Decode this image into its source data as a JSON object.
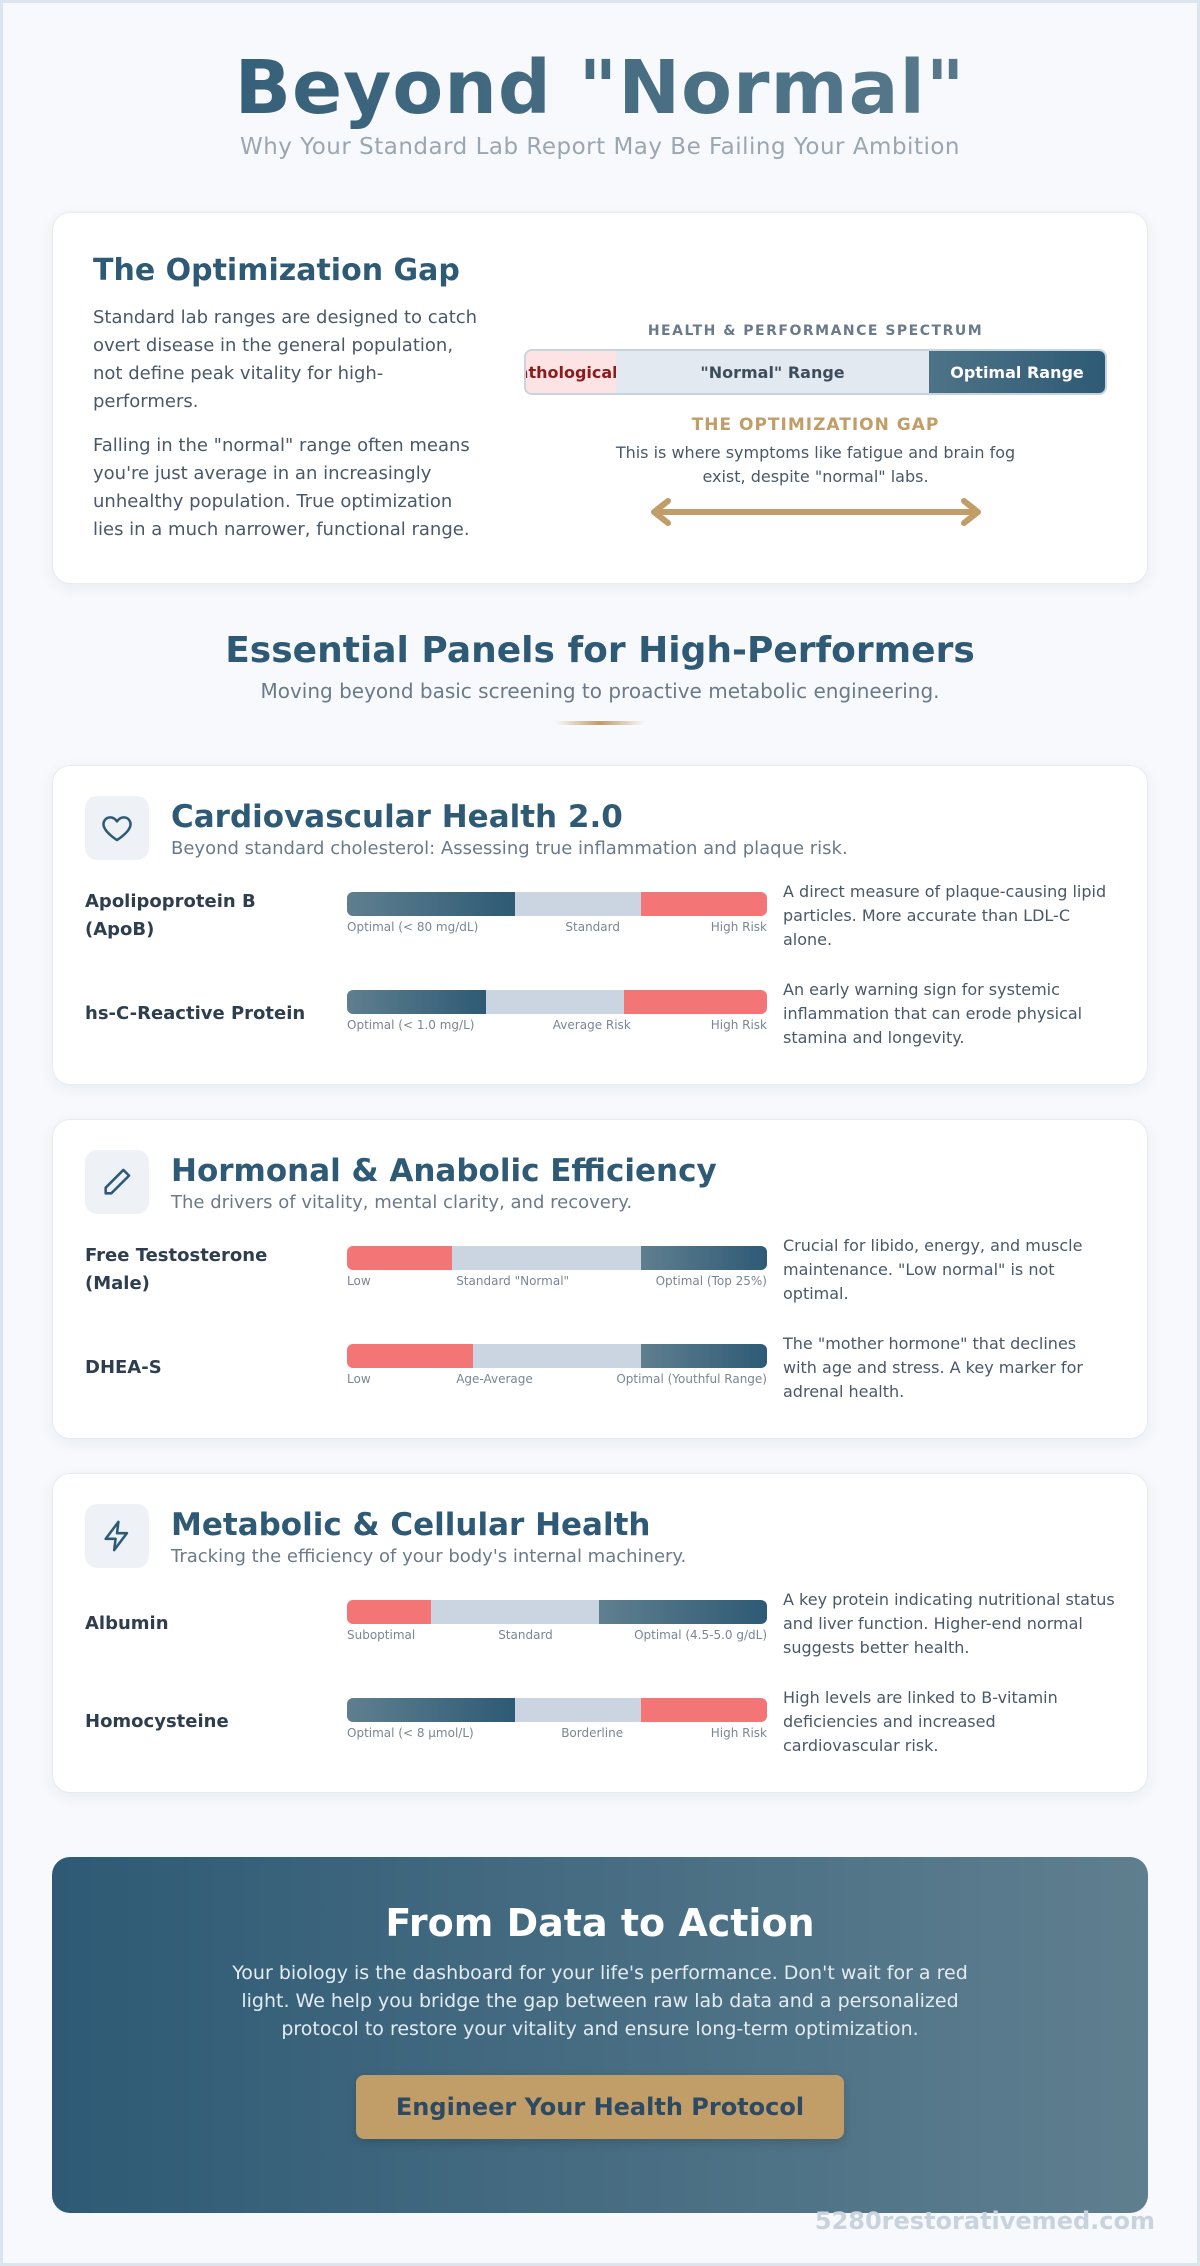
{
  "hero": {
    "title": "Beyond \"Normal\"",
    "subtitle": "Why Your Standard Lab Report May Be Failing Your Ambition"
  },
  "gap": {
    "title": "The Optimization Gap",
    "paragraph1": "Standard lab ranges are designed to catch overt disease in the general population, not define peak vitality for high-performers.",
    "paragraph2": "Falling in the \"normal\" range often means you're just average in an increasingly unhealthy population. True optimization lies in a much narrower, functional range.",
    "spectrum_title": "HEALTH & PERFORMANCE SPECTRUM",
    "seg_pathological": "Pathological",
    "seg_normal": "\"Normal\" Range",
    "seg_optimal": "Optimal Range",
    "gap_label": "THE OPTIMIZATION GAP",
    "gap_desc": "This is where symptoms like fatigue and brain fog exist, despite \"normal\" labs."
  },
  "essentials": {
    "title": "Essential Panels for High-Performers",
    "subtitle": "Moving beyond basic screening to proactive metabolic engineering."
  },
  "panels": [
    {
      "icon": "heart-icon",
      "title": "Cardiovascular Health 2.0",
      "desc": "Beyond standard cholesterol: Assessing true inflammation and plaque risk.",
      "markers": [
        {
          "name": "Apolipoprotein B (ApoB)",
          "labels": [
            "Optimal (< 80 mg/dL)",
            "Standard",
            "High Risk"
          ],
          "desc": "A direct measure of plaque-causing lipid particles. More accurate than LDL-C alone."
        },
        {
          "name": "hs-C-Reactive Protein",
          "labels": [
            "Optimal (< 1.0 mg/L)",
            "Average Risk",
            "High Risk"
          ],
          "desc": "An early warning sign for systemic inflammation that can erode physical stamina and longevity."
        }
      ]
    },
    {
      "icon": "pen-icon",
      "title": "Hormonal & Anabolic Efficiency",
      "desc": "The drivers of vitality, mental clarity, and recovery.",
      "markers": [
        {
          "name": "Free Testosterone (Male)",
          "labels": [
            "Low",
            "Standard \"Normal\"",
            "Optimal (Top 25%)"
          ],
          "desc": "Crucial for libido, energy, and muscle maintenance. \"Low normal\" is not optimal."
        },
        {
          "name": "DHEA-S",
          "labels": [
            "Low",
            "Age-Average",
            "Optimal (Youthful Range)"
          ],
          "desc": "The \"mother hormone\" that declines with age and stress. A key marker for adrenal health."
        }
      ]
    },
    {
      "icon": "lightning-icon",
      "title": "Metabolic & Cellular Health",
      "desc": "Tracking the efficiency of your body's internal machinery.",
      "markers": [
        {
          "name": "Albumin",
          "labels": [
            "Suboptimal",
            "Standard",
            "Optimal (4.5-5.0 g/dL)"
          ],
          "desc": "A key protein indicating nutritional status and liver function. Higher-end normal suggests better health."
        },
        {
          "name": "Homocysteine",
          "labels": [
            "Optimal (< 8 μmol/L)",
            "Borderline",
            "High Risk"
          ],
          "desc": "High levels are linked to B-vitamin deficiencies and increased cardiovascular risk."
        }
      ]
    }
  ],
  "cta": {
    "title": "From Data to Action",
    "text": "Your biology is the dashboard for your life's performance. Don't wait for a red light. We help you bridge the gap between raw lab data and a personalized protocol to restore your vitality and ensure long-term optimization.",
    "button": "Engineer Your Health Protocol"
  },
  "footer": {
    "brand": "5280restorativemed.com"
  },
  "colors": {
    "primary": "#2e5a75",
    "accent": "#c19d68",
    "risk": "#f47575",
    "neutral": "#cad5e1"
  }
}
